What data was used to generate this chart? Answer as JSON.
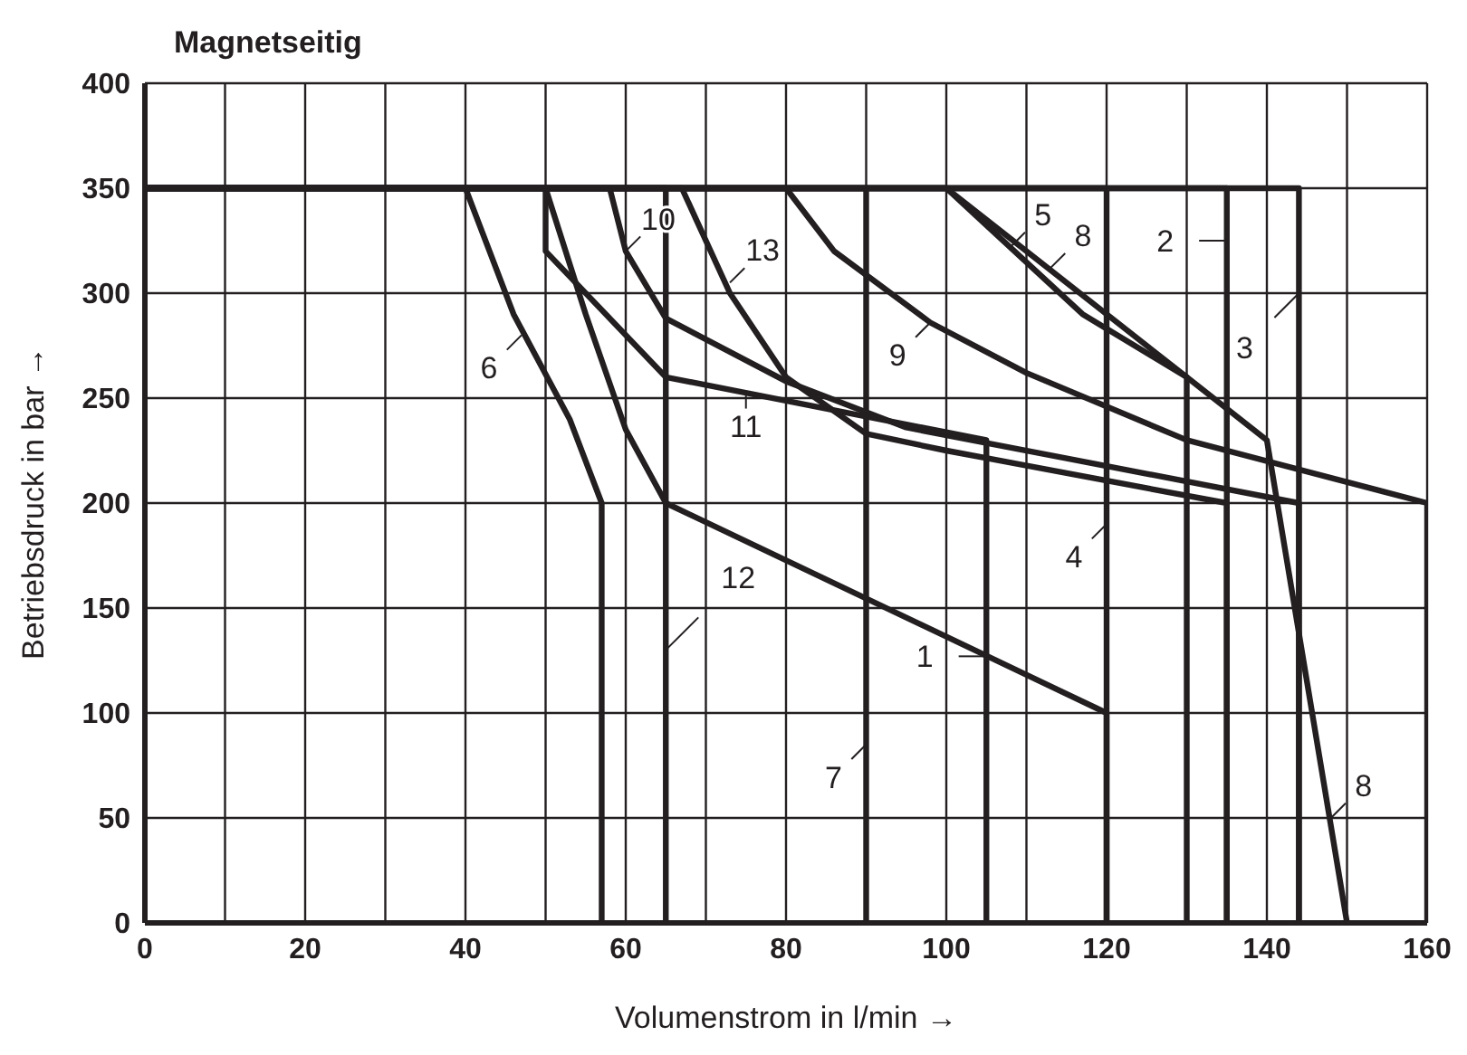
{
  "chart_data": {
    "type": "line",
    "title": "Magnetseitig",
    "xlabel": "Volumenstrom in l/min →",
    "ylabel": "Betriebsdruck in bar →",
    "xlim": [
      0,
      160
    ],
    "ylim": [
      0,
      400
    ],
    "xticks": [
      0,
      {
        "value": 10,
        "label": null
      },
      20,
      {
        "value": 30,
        "label": null
      },
      40,
      {
        "value": 50,
        "label": null
      },
      60,
      {
        "value": 70,
        "label": null
      },
      80,
      {
        "value": 90,
        "label": null
      },
      100,
      {
        "value": 110,
        "label": null
      },
      120,
      {
        "value": 130,
        "label": null
      },
      140,
      {
        "value": 150,
        "label": null
      },
      160
    ],
    "yticks": [
      0,
      50,
      100,
      150,
      200,
      250,
      300,
      350,
      400
    ],
    "grid": true,
    "line_style": "solid",
    "series": [
      {
        "color": "#231f20",
        "x": [
          0,
          50,
          55,
          60,
          65,
          120,
          120
        ],
        "values": [
          350,
          350,
          290,
          235,
          200,
          100,
          0
        ]
      },
      {
        "color": "#231f20",
        "x": [
          0,
          135,
          135
        ],
        "values": [
          350,
          350,
          0
        ]
      },
      {
        "color": "#231f20",
        "x": [
          0,
          144,
          144
        ],
        "values": [
          350,
          350,
          0
        ]
      },
      {
        "color": "#231f20",
        "x": [
          0,
          120,
          120
        ],
        "values": [
          350,
          350,
          0
        ]
      },
      {
        "color": "#231f20",
        "x": [
          0,
          100,
          117,
          130,
          130
        ],
        "values": [
          350,
          350,
          290,
          260,
          0
        ]
      },
      {
        "color": "#231f20",
        "x": [
          0,
          40,
          46,
          53,
          57,
          57
        ],
        "values": [
          350,
          350,
          290,
          240,
          200,
          0
        ]
      },
      {
        "color": "#231f20",
        "x": [
          0,
          90,
          90
        ],
        "values": [
          350,
          350,
          0
        ]
      },
      {
        "color": "#231f20",
        "x": [
          0,
          100,
          130,
          140,
          150
        ],
        "values": [
          350,
          350,
          260,
          230,
          0
        ]
      },
      {
        "color": "#231f20",
        "x": [
          0,
          80,
          86,
          98,
          110,
          130,
          160,
          160
        ],
        "values": [
          350,
          350,
          320,
          286,
          262,
          230,
          200,
          0
        ]
      },
      {
        "color": "#231f20",
        "x": [
          0,
          58,
          60,
          65,
          80,
          95,
          144,
          144
        ],
        "values": [
          350,
          350,
          320,
          288,
          258,
          236,
          200,
          0
        ]
      },
      {
        "color": "#231f20",
        "x": [
          0,
          50,
          50,
          65,
          105,
          105
        ],
        "values": [
          350,
          350,
          320,
          260,
          230,
          0
        ]
      },
      {
        "color": "#231f20",
        "x": [
          0,
          65,
          65
        ],
        "values": [
          350,
          350,
          0
        ]
      },
      {
        "color": "#231f20",
        "x": [
          0,
          67,
          73,
          80,
          90,
          100,
          135,
          135
        ],
        "values": [
          350,
          350,
          300,
          260,
          233,
          225,
          200,
          0
        ]
      }
    ],
    "annotations": [
      {
        "text": "1",
        "x": 105,
        "y": 127
      },
      {
        "text": "2",
        "x": 135,
        "y": 325
      },
      {
        "text": "3",
        "x": 144,
        "y": 300
      },
      {
        "text": "4",
        "x": 120,
        "y": 190
      },
      {
        "text": "5",
        "x": 108,
        "y": 322
      },
      {
        "text": "6",
        "x": 47,
        "y": 280
      },
      {
        "text": "7",
        "x": 90,
        "y": 85
      },
      {
        "text": "8",
        "x": 113,
        "y": 312
      },
      {
        "text": "8",
        "x": 148,
        "y": 50
      },
      {
        "text": "9",
        "x": 98,
        "y": 286
      },
      {
        "text": "10",
        "x": 60,
        "y": 320
      },
      {
        "text": "11",
        "x": 75,
        "y": 252
      },
      {
        "text": "12",
        "x": 65,
        "y": 130
      },
      {
        "text": "13",
        "x": 73,
        "y": 305
      }
    ]
  }
}
